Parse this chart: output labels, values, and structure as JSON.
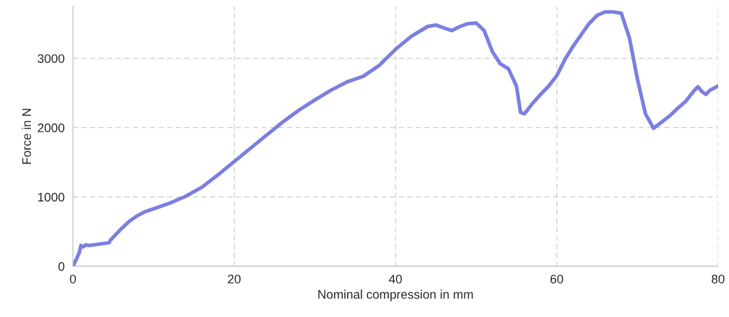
{
  "chart_data": {
    "type": "line",
    "xlabel": "Nominal compression in mm",
    "ylabel": "Force in N",
    "x": [
      0,
      0.5,
      0.8,
      1,
      1.3,
      1.6,
      2,
      4.5,
      4.6,
      5,
      6,
      7,
      8,
      9,
      10,
      12,
      14,
      16,
      18,
      20,
      22,
      24,
      26,
      28,
      30,
      32,
      34,
      36,
      38,
      40,
      42,
      44,
      45,
      46,
      47,
      48,
      49,
      50,
      51,
      52,
      53,
      54,
      55,
      55.5,
      56,
      57,
      58,
      59,
      60,
      61,
      62,
      64,
      65,
      66,
      67,
      68,
      69,
      70,
      71,
      72,
      73,
      74,
      75,
      76,
      77,
      77.5,
      78,
      78.5,
      79,
      80
    ],
    "series": [
      {
        "color": "#7b7fe0",
        "values": [
          0,
          120,
          200,
          300,
          280,
          310,
          300,
          340,
          370,
          420,
          540,
          650,
          730,
          790,
          830,
          910,
          1010,
          1140,
          1320,
          1510,
          1700,
          1890,
          2080,
          2250,
          2400,
          2540,
          2660,
          2740,
          2900,
          3130,
          3320,
          3460,
          3480,
          3440,
          3400,
          3460,
          3500,
          3510,
          3400,
          3100,
          2920,
          2850,
          2600,
          2220,
          2200,
          2350,
          2480,
          2600,
          2750,
          2980,
          3170,
          3500,
          3620,
          3670,
          3670,
          3650,
          3300,
          2700,
          2200,
          1990,
          2080,
          2170,
          2280,
          2380,
          2530,
          2590,
          2520,
          2480,
          2540,
          2600
        ]
      }
    ],
    "xlim": [
      0,
      80
    ],
    "xticks": [
      0,
      20,
      40,
      60,
      80
    ],
    "ylim": [
      0,
      3750
    ],
    "yticks": [
      0,
      1000,
      2000,
      3000
    ],
    "grid": true,
    "marker": "none",
    "line_style": "solid"
  }
}
